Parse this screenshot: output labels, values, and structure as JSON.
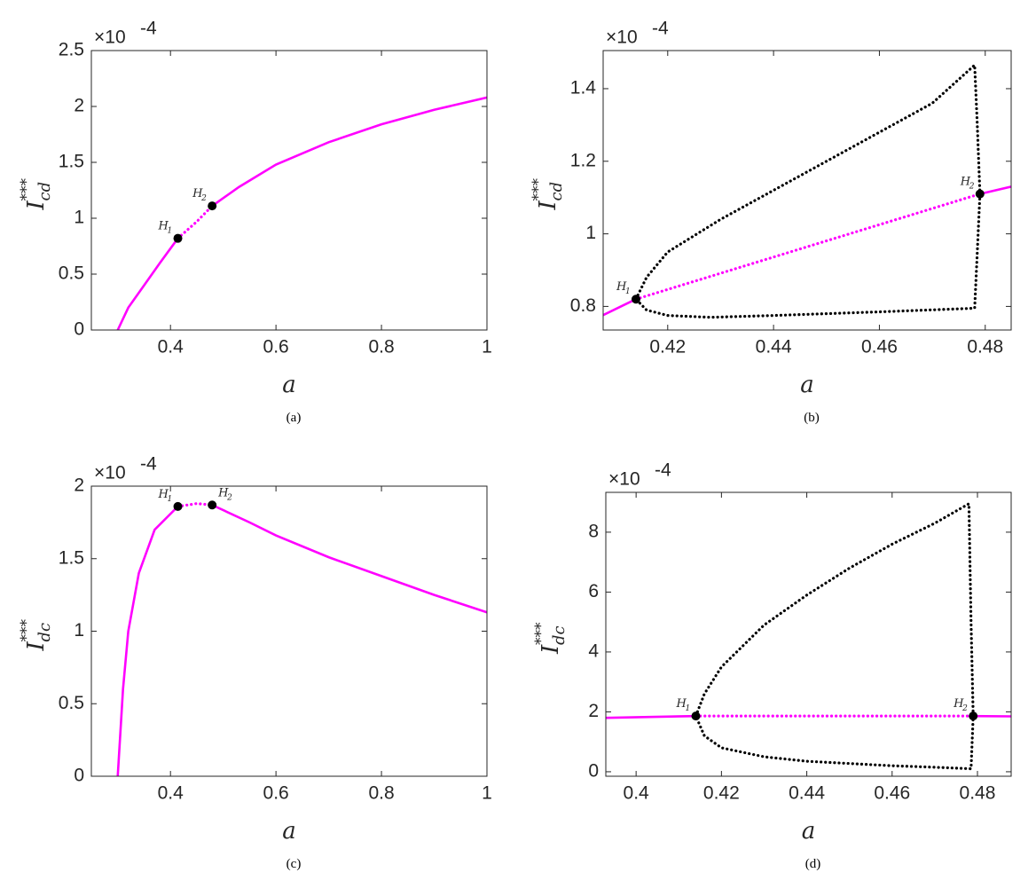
{
  "chart_data": [
    {
      "type": "line",
      "caption": "(a)",
      "xlabel": "a",
      "ylabel": {
        "base": "I",
        "sub": "cd",
        "sup": "***"
      },
      "y_multiplier": "×10",
      "y_exponent": "-4",
      "xlim": [
        0.25,
        1
      ],
      "xticks": [
        0.4,
        0.6,
        0.8,
        1
      ],
      "ylim": [
        0,
        2.5
      ],
      "yticks": [
        0,
        0.5,
        1,
        1.5,
        2,
        2.5
      ],
      "series": [
        {
          "color": "#ff00ff",
          "style": "solid",
          "x": [
            0.3,
            0.32,
            0.35,
            0.38,
            0.414,
            null,
            0.479,
            0.53,
            0.6,
            0.7,
            0.8,
            0.9,
            1.0
          ],
          "values": [
            0,
            0.2,
            0.4,
            0.6,
            0.82,
            null,
            1.11,
            1.28,
            1.48,
            1.68,
            1.84,
            1.97,
            2.08
          ]
        },
        {
          "color": "#ff00ff",
          "style": "dotted",
          "x": [
            0.414,
            0.45,
            0.479
          ],
          "values": [
            0.82,
            0.97,
            1.11
          ]
        }
      ],
      "points": [
        {
          "label": "H",
          "sub": "1",
          "x": 0.414,
          "y": 0.82
        },
        {
          "label": "H",
          "sub": "2",
          "x": 0.479,
          "y": 1.11
        }
      ]
    },
    {
      "type": "line",
      "caption": "(b)",
      "xlabel": "a",
      "ylabel": {
        "base": "I",
        "sub": "cd",
        "sup": "***"
      },
      "y_multiplier": "×10",
      "y_exponent": "-4",
      "xlim": [
        0.4078,
        0.4849
      ],
      "xticks": [
        0.42,
        0.44,
        0.46,
        0.48
      ],
      "ylim": [
        0.735,
        1.505
      ],
      "yticks": [
        0.8,
        1,
        1.2,
        1.4
      ],
      "series": [
        {
          "color": "#ff00ff",
          "style": "solid",
          "x": [
            0.4078,
            0.414,
            null,
            0.479,
            0.4849
          ],
          "values": [
            0.776,
            0.82,
            null,
            1.11,
            1.13
          ]
        },
        {
          "color": "#ff00ff",
          "style": "dotted",
          "x": [
            0.414,
            0.479
          ],
          "values": [
            0.82,
            1.11
          ]
        },
        {
          "color": "#000000",
          "style": "dotted",
          "x": [
            0.414,
            0.416,
            0.42,
            0.43,
            0.44,
            0.45,
            0.46,
            0.47,
            0.478,
            0.4785,
            0.479,
            0.4785,
            0.478,
            0.46,
            0.44,
            0.428,
            0.42,
            0.416,
            0.414
          ],
          "values": [
            0.82,
            0.88,
            0.95,
            1.04,
            1.12,
            1.2,
            1.28,
            1.36,
            1.465,
            1.3,
            1.11,
            0.95,
            0.795,
            0.785,
            0.775,
            0.77,
            0.775,
            0.79,
            0.82
          ]
        }
      ],
      "points": [
        {
          "label": "H",
          "sub": "1",
          "x": 0.414,
          "y": 0.82
        },
        {
          "label": "H",
          "sub": "2",
          "x": 0.479,
          "y": 1.11
        }
      ]
    },
    {
      "type": "line",
      "caption": "(c)",
      "xlabel": "a",
      "ylabel": {
        "base": "I",
        "sub": "dc",
        "sup": "***"
      },
      "y_multiplier": "×10",
      "y_exponent": "-4",
      "xlim": [
        0.25,
        1
      ],
      "xticks": [
        0.4,
        0.6,
        0.8,
        1
      ],
      "ylim": [
        0,
        2
      ],
      "yticks": [
        0,
        0.5,
        1,
        1.5,
        2
      ],
      "series": [
        {
          "color": "#ff00ff",
          "style": "solid",
          "x": [
            0.3,
            0.31,
            0.32,
            0.34,
            0.37,
            0.414,
            null,
            0.479,
            0.55,
            0.6,
            0.7,
            0.8,
            0.9,
            1.0
          ],
          "values": [
            0,
            0.6,
            1.0,
            1.4,
            1.7,
            1.86,
            null,
            1.87,
            1.75,
            1.66,
            1.51,
            1.38,
            1.25,
            1.13
          ]
        },
        {
          "color": "#ff00ff",
          "style": "dotted",
          "x": [
            0.414,
            0.45,
            0.479
          ],
          "values": [
            1.86,
            1.88,
            1.87
          ]
        }
      ],
      "points": [
        {
          "label": "H",
          "sub": "1",
          "x": 0.414,
          "y": 1.86
        },
        {
          "label": "H",
          "sub": "2",
          "x": 0.479,
          "y": 1.87
        }
      ]
    },
    {
      "type": "line",
      "caption": "(d)",
      "xlabel": "a",
      "ylabel": {
        "base": "I",
        "sub": "dc",
        "sup": "***"
      },
      "y_multiplier": "×10",
      "y_exponent": "-4",
      "xlim": [
        0.3929,
        0.4879
      ],
      "xticks": [
        0.4,
        0.42,
        0.44,
        0.46,
        0.48
      ],
      "ylim": [
        -0.15,
        9.33
      ],
      "yticks": [
        0,
        2,
        4,
        6,
        8
      ],
      "series": [
        {
          "color": "#ff00ff",
          "style": "solid",
          "x": [
            0.3929,
            0.414,
            null,
            0.479,
            0.4879
          ],
          "values": [
            1.8,
            1.86,
            null,
            1.86,
            1.85
          ]
        },
        {
          "color": "#ff00ff",
          "style": "dotted",
          "x": [
            0.414,
            0.479
          ],
          "values": [
            1.86,
            1.86
          ]
        },
        {
          "color": "#000000",
          "style": "dotted",
          "x": [
            0.414,
            0.416,
            0.42,
            0.43,
            0.44,
            0.45,
            0.46,
            0.47,
            0.478,
            0.4785,
            0.479,
            0.4785,
            0.47,
            0.46,
            0.44,
            0.43,
            0.42,
            0.416,
            0.414
          ],
          "values": [
            1.86,
            2.6,
            3.5,
            4.9,
            5.9,
            6.8,
            7.6,
            8.3,
            8.95,
            5,
            1.86,
            0.1,
            0.15,
            0.2,
            0.35,
            0.5,
            0.8,
            1.2,
            1.86
          ]
        }
      ],
      "points": [
        {
          "label": "H",
          "sub": "1",
          "x": 0.414,
          "y": 1.86
        },
        {
          "label": "H",
          "sub": "2",
          "x": 0.479,
          "y": 1.86
        }
      ]
    }
  ]
}
